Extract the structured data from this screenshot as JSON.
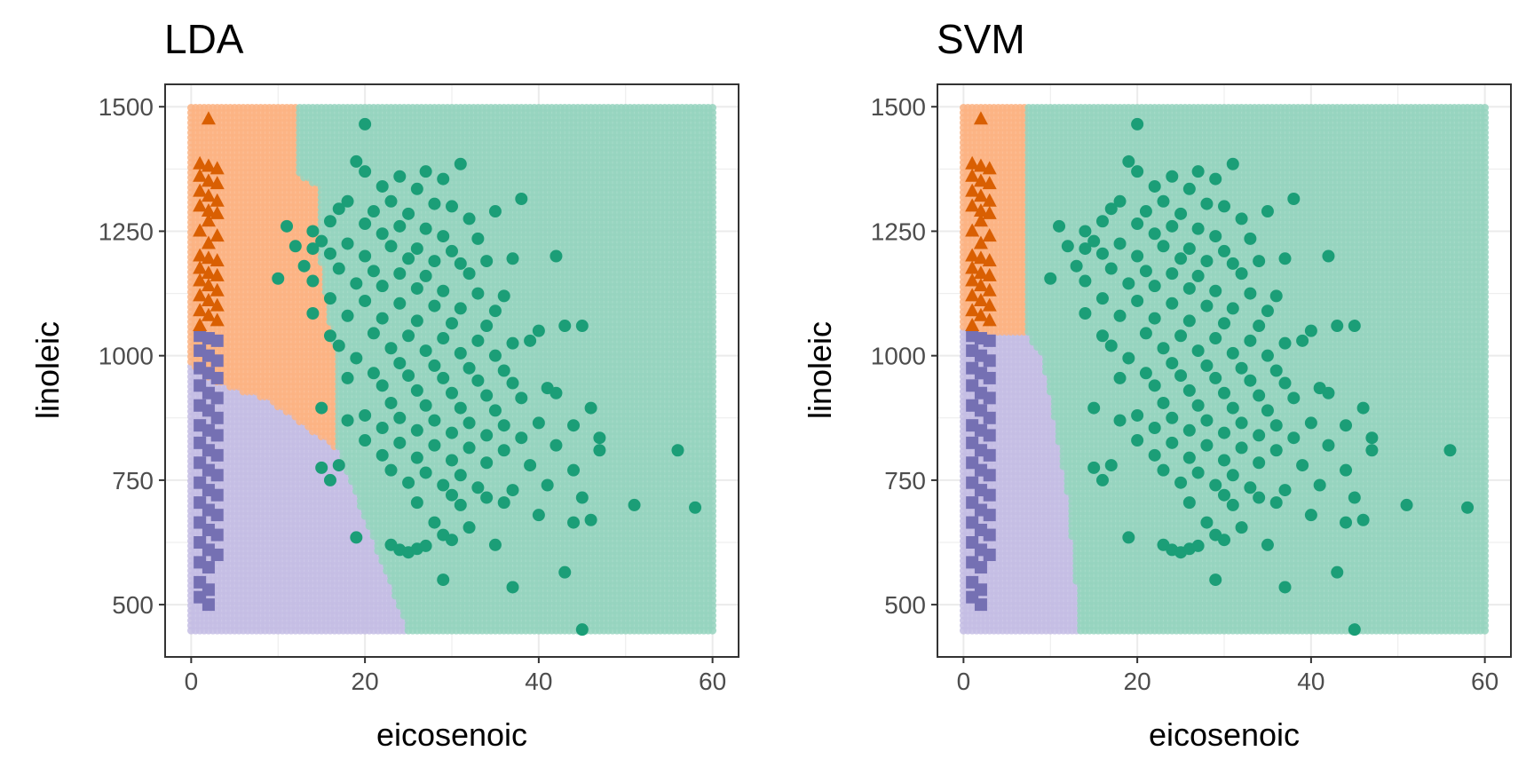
{
  "colors": {
    "region_A": "#fbb383",
    "region_B": "#c4bde4",
    "region_C": "#95d4be",
    "point_A": "#d95f02",
    "point_B": "#7570b3",
    "point_C": "#1b9e77",
    "grid": "#ebebeb",
    "frame": "#333333",
    "tick_text": "#4d4d4d"
  },
  "chart_data": [
    {
      "type": "scatter",
      "title": "LDA",
      "xlabel": "eicosenoic",
      "ylabel": "linoleic",
      "xlim": [
        -3,
        63
      ],
      "ylim": [
        395,
        1545
      ],
      "x_ticks": [
        "0",
        "20",
        "40",
        "60"
      ],
      "y_ticks": [
        "500",
        "750",
        "1000",
        "1250",
        "1500"
      ],
      "grid": true,
      "background_grid": {
        "x": [
          0,
          60
        ],
        "y": [
          448,
          1500
        ],
        "boundary_B_line": [
          [
            0,
            980
          ],
          [
            3,
            945
          ],
          [
            9,
            910
          ],
          [
            17,
            810
          ],
          [
            25,
            448
          ]
        ],
        "boundary_A_curve": [
          [
            0,
            1500
          ],
          [
            12,
            1500
          ],
          [
            12.5,
            1360
          ],
          [
            14.5,
            1340
          ],
          [
            15,
            1180
          ],
          [
            16,
            1060
          ],
          [
            17,
            980
          ],
          [
            17,
            810
          ]
        ]
      }
    },
    {
      "type": "scatter",
      "title": "SVM",
      "xlabel": "eicosenoic",
      "ylabel": "linoleic",
      "xlim": [
        -3,
        63
      ],
      "ylim": [
        395,
        1545
      ],
      "x_ticks": [
        "0",
        "20",
        "40",
        "60"
      ],
      "y_ticks": [
        "500",
        "750",
        "1000",
        "1250",
        "1500"
      ],
      "grid": true,
      "background_grid": {
        "x": [
          0,
          60
        ],
        "y": [
          448,
          1500
        ],
        "boundary_B_line": [
          [
            0,
            1050
          ],
          [
            7.5,
            1040
          ],
          [
            9,
            1000
          ],
          [
            10,
            920
          ],
          [
            12,
            720
          ],
          [
            13.5,
            448
          ]
        ],
        "boundary_A_curve": [
          [
            0,
            1500
          ],
          [
            7.5,
            1500
          ],
          [
            7.5,
            1040
          ]
        ]
      }
    }
  ],
  "shared_points": {
    "triangles_A": [
      [
        2,
        1475
      ],
      [
        1,
        1385
      ],
      [
        2,
        1380
      ],
      [
        3,
        1375
      ],
      [
        1,
        1360
      ],
      [
        2,
        1350
      ],
      [
        3,
        1345
      ],
      [
        1,
        1330
      ],
      [
        2,
        1320
      ],
      [
        3,
        1310
      ],
      [
        1,
        1300
      ],
      [
        2,
        1290
      ],
      [
        3,
        1285
      ],
      [
        2,
        1270
      ],
      [
        1,
        1250
      ],
      [
        3,
        1240
      ],
      [
        2,
        1225
      ],
      [
        1,
        1200
      ],
      [
        2,
        1195
      ],
      [
        3,
        1190
      ],
      [
        1,
        1175
      ],
      [
        2,
        1165
      ],
      [
        3,
        1160
      ],
      [
        1,
        1150
      ],
      [
        2,
        1140
      ],
      [
        3,
        1130
      ],
      [
        1,
        1120
      ],
      [
        2,
        1110
      ],
      [
        3,
        1100
      ],
      [
        1,
        1090
      ],
      [
        2,
        1080
      ],
      [
        3,
        1070
      ],
      [
        1,
        1060
      ]
    ],
    "squares_B": [
      [
        1,
        1040
      ],
      [
        2,
        1035
      ],
      [
        3,
        1030
      ],
      [
        1,
        1010
      ],
      [
        2,
        1000
      ],
      [
        3,
        990
      ],
      [
        1,
        975
      ],
      [
        2,
        965
      ],
      [
        3,
        955
      ],
      [
        1,
        940
      ],
      [
        2,
        925
      ],
      [
        3,
        915
      ],
      [
        1,
        900
      ],
      [
        2,
        890
      ],
      [
        3,
        875
      ],
      [
        1,
        860
      ],
      [
        2,
        850
      ],
      [
        3,
        840
      ],
      [
        1,
        825
      ],
      [
        2,
        810
      ],
      [
        3,
        800
      ],
      [
        1,
        785
      ],
      [
        2,
        770
      ],
      [
        3,
        760
      ],
      [
        1,
        745
      ],
      [
        2,
        730
      ],
      [
        3,
        720
      ],
      [
        1,
        705
      ],
      [
        2,
        690
      ],
      [
        3,
        680
      ],
      [
        1,
        665
      ],
      [
        2,
        650
      ],
      [
        3,
        640
      ],
      [
        1,
        625
      ],
      [
        2,
        610
      ],
      [
        3,
        600
      ],
      [
        1,
        585
      ],
      [
        2,
        575
      ],
      [
        1,
        545
      ],
      [
        2,
        530
      ],
      [
        1,
        515
      ],
      [
        2,
        500
      ]
    ],
    "circles_C": [
      [
        20,
        1465
      ],
      [
        19,
        1390
      ],
      [
        31,
        1385
      ],
      [
        20,
        1370
      ],
      [
        27,
        1370
      ],
      [
        29,
        1355
      ],
      [
        24,
        1360
      ],
      [
        22,
        1340
      ],
      [
        26,
        1335
      ],
      [
        38,
        1315
      ],
      [
        18,
        1310
      ],
      [
        23,
        1310
      ],
      [
        28,
        1305
      ],
      [
        30,
        1300
      ],
      [
        17,
        1295
      ],
      [
        21,
        1290
      ],
      [
        25,
        1285
      ],
      [
        32,
        1275
      ],
      [
        35,
        1290
      ],
      [
        16,
        1270
      ],
      [
        20,
        1265
      ],
      [
        24,
        1260
      ],
      [
        27,
        1255
      ],
      [
        11,
        1260
      ],
      [
        14,
        1250
      ],
      [
        22,
        1245
      ],
      [
        29,
        1240
      ],
      [
        33,
        1235
      ],
      [
        15,
        1230
      ],
      [
        18,
        1225
      ],
      [
        23,
        1220
      ],
      [
        26,
        1215
      ],
      [
        30,
        1210
      ],
      [
        12,
        1220
      ],
      [
        14,
        1215
      ],
      [
        16,
        1205
      ],
      [
        20,
        1200
      ],
      [
        25,
        1195
      ],
      [
        28,
        1190
      ],
      [
        31,
        1185
      ],
      [
        34,
        1190
      ],
      [
        42,
        1200
      ],
      [
        37,
        1195
      ],
      [
        13,
        1180
      ],
      [
        17,
        1175
      ],
      [
        21,
        1170
      ],
      [
        24,
        1165
      ],
      [
        27,
        1160
      ],
      [
        32,
        1165
      ],
      [
        10,
        1155
      ],
      [
        14,
        1150
      ],
      [
        19,
        1145
      ],
      [
        22,
        1140
      ],
      [
        26,
        1135
      ],
      [
        29,
        1130
      ],
      [
        33,
        1125
      ],
      [
        36,
        1120
      ],
      [
        16,
        1115
      ],
      [
        20,
        1110
      ],
      [
        24,
        1105
      ],
      [
        28,
        1100
      ],
      [
        31,
        1095
      ],
      [
        35,
        1090
      ],
      [
        14,
        1085
      ],
      [
        18,
        1080
      ],
      [
        22,
        1075
      ],
      [
        26,
        1070
      ],
      [
        30,
        1065
      ],
      [
        34,
        1060
      ],
      [
        43,
        1060
      ],
      [
        45,
        1060
      ],
      [
        40,
        1050
      ],
      [
        21,
        1045
      ],
      [
        25,
        1040
      ],
      [
        29,
        1035
      ],
      [
        33,
        1030
      ],
      [
        37,
        1025
      ],
      [
        16,
        1040
      ],
      [
        39,
        1030
      ],
      [
        17,
        1020
      ],
      [
        23,
        1015
      ],
      [
        27,
        1010
      ],
      [
        31,
        1005
      ],
      [
        35,
        1000
      ],
      [
        19,
        995
      ],
      [
        24,
        985
      ],
      [
        28,
        980
      ],
      [
        32,
        975
      ],
      [
        36,
        970
      ],
      [
        21,
        965
      ],
      [
        25,
        960
      ],
      [
        29,
        955
      ],
      [
        33,
        950
      ],
      [
        37,
        945
      ],
      [
        41,
        935
      ],
      [
        18,
        955
      ],
      [
        22,
        940
      ],
      [
        26,
        930
      ],
      [
        30,
        925
      ],
      [
        34,
        920
      ],
      [
        38,
        915
      ],
      [
        42,
        925
      ],
      [
        23,
        905
      ],
      [
        27,
        900
      ],
      [
        31,
        895
      ],
      [
        35,
        890
      ],
      [
        15,
        895
      ],
      [
        46,
        895
      ],
      [
        20,
        880
      ],
      [
        24,
        875
      ],
      [
        28,
        870
      ],
      [
        32,
        865
      ],
      [
        36,
        860
      ],
      [
        40,
        865
      ],
      [
        18,
        870
      ],
      [
        22,
        855
      ],
      [
        26,
        850
      ],
      [
        30,
        845
      ],
      [
        34,
        840
      ],
      [
        38,
        835
      ],
      [
        44,
        860
      ],
      [
        47,
        835
      ],
      [
        20,
        830
      ],
      [
        24,
        825
      ],
      [
        28,
        820
      ],
      [
        32,
        815
      ],
      [
        36,
        810
      ],
      [
        42,
        820
      ],
      [
        47,
        810
      ],
      [
        56,
        810
      ],
      [
        22,
        800
      ],
      [
        26,
        795
      ],
      [
        30,
        790
      ],
      [
        34,
        785
      ],
      [
        39,
        780
      ],
      [
        17,
        780
      ],
      [
        15,
        775
      ],
      [
        23,
        770
      ],
      [
        27,
        765
      ],
      [
        31,
        760
      ],
      [
        44,
        770
      ],
      [
        16,
        750
      ],
      [
        25,
        745
      ],
      [
        29,
        740
      ],
      [
        33,
        735
      ],
      [
        37,
        730
      ],
      [
        41,
        740
      ],
      [
        30,
        720
      ],
      [
        34,
        715
      ],
      [
        26,
        705
      ],
      [
        31,
        700
      ],
      [
        36,
        705
      ],
      [
        45,
        715
      ],
      [
        51,
        700
      ],
      [
        58,
        695
      ],
      [
        40,
        680
      ],
      [
        44,
        665
      ],
      [
        46,
        670
      ],
      [
        28,
        665
      ],
      [
        32,
        655
      ],
      [
        19,
        635
      ],
      [
        29,
        640
      ],
      [
        30,
        630
      ],
      [
        23,
        620
      ],
      [
        24,
        610
      ],
      [
        25,
        605
      ],
      [
        26,
        612
      ],
      [
        27,
        618
      ],
      [
        35,
        620
      ],
      [
        43,
        565
      ],
      [
        29,
        550
      ],
      [
        37,
        535
      ],
      [
        45,
        450
      ]
    ]
  }
}
